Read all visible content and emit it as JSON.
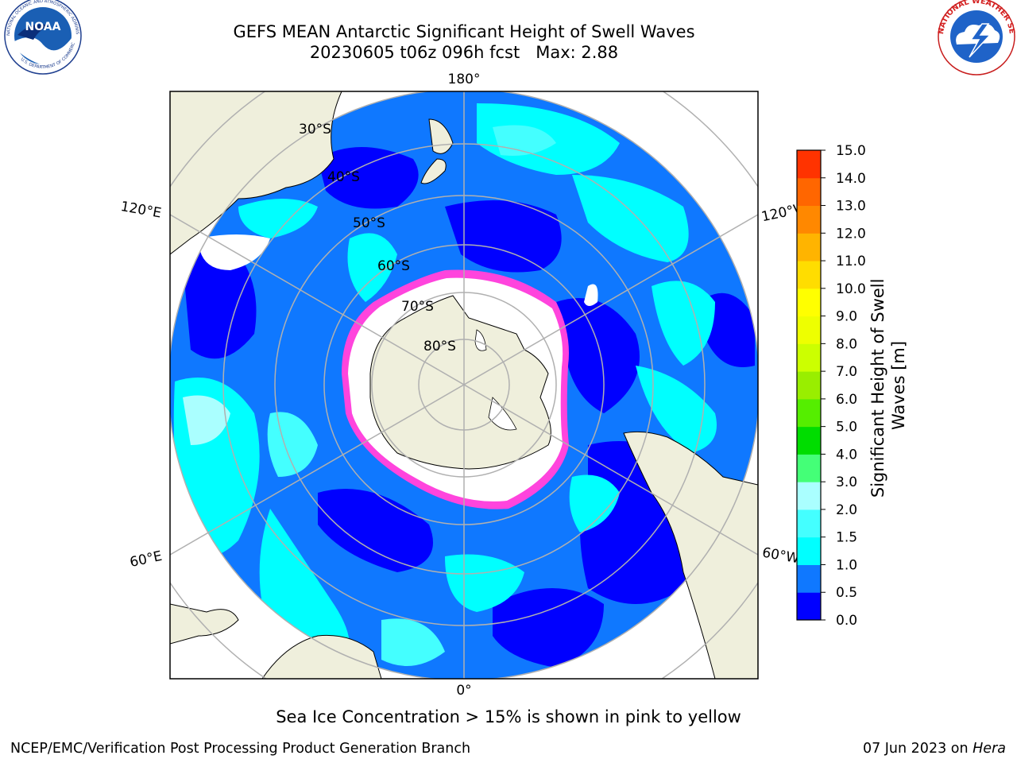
{
  "title_line1": "GEFS MEAN Antarctic Significant Height of Swell Waves",
  "title_line2": "20230605 t06z 096h fcst   Max: 2.88",
  "caption": "Sea Ice Concentration > 15% is shown in pink to yellow",
  "footer_left": "NCEP/EMC/Verification Post Processing Product Generation Branch",
  "footer_right_date": "07 Jun 2023 on ",
  "footer_right_host": "Hera",
  "logos": {
    "noaa_text": "NOAA",
    "noaa_ring_top": "NATIONAL OCEANIC AND ATMOSPHERIC ADMINISTRATION",
    "noaa_ring_bottom": "U.S. DEPARTMENT OF COMMERCE",
    "nws_ring": "NATIONAL WEATHER SERVICE"
  },
  "map": {
    "projection": "south-polar-stereographic",
    "longitude_labels": {
      "top": "180°",
      "bottom": "0°",
      "left_upper": "120°E",
      "left_lower": "60°E",
      "right_upper": "120°W",
      "right_lower": "60°W"
    },
    "latitude_labels": [
      "30°S",
      "40°S",
      "50°S",
      "60°S",
      "70°S",
      "80°S"
    ],
    "colors": {
      "land": "#efefdc",
      "sea_ice": "#ffffff",
      "gridlines": "#b0b0b0",
      "ice_edge": "#ff44dd"
    }
  },
  "colorbar": {
    "label": "Significant Height of Swell Waves [m]",
    "label_line1": "Significant Height of Swell",
    "label_line2": "Waves [m]",
    "ticks": [
      "0.0",
      "0.5",
      "1.0",
      "1.5",
      "2.0",
      "3.0",
      "4.0",
      "5.0",
      "6.0",
      "7.0",
      "8.0",
      "9.0",
      "10.0",
      "11.0",
      "12.0",
      "13.0",
      "14.0",
      "15.0"
    ],
    "colors": [
      "#0000ff",
      "#0f78ff",
      "#00ffff",
      "#44ffff",
      "#aaffff",
      "#44ff77",
      "#00dd00",
      "#55ee00",
      "#99ee00",
      "#ccff00",
      "#eeff00",
      "#ffff00",
      "#ffdd00",
      "#ffb400",
      "#ff8800",
      "#ff6600",
      "#ff3300",
      "#ff0000"
    ]
  }
}
